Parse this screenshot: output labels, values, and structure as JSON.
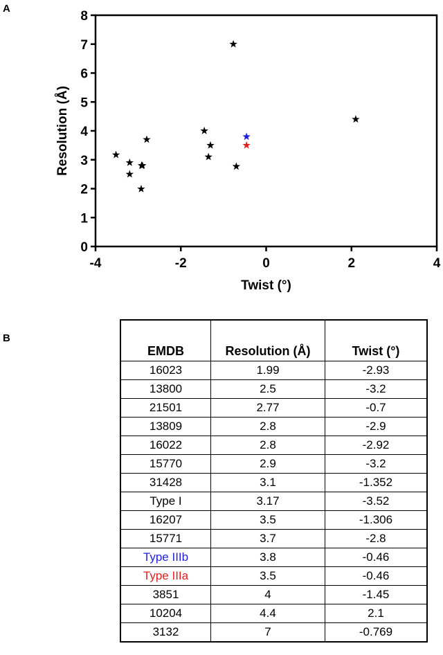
{
  "panel_a_label": "A",
  "panel_b_label": "B",
  "chart_data": {
    "type": "scatter",
    "xlabel": "Twist (°)",
    "ylabel": "Resolution (Å)",
    "xlim": [
      -4,
      4
    ],
    "ylim": [
      0,
      8
    ],
    "x_ticks": [
      -4,
      -2,
      0,
      2,
      4
    ],
    "y_ticks": [
      0,
      1,
      2,
      3,
      4,
      5,
      6,
      7,
      8
    ],
    "marker": "star",
    "grid": false,
    "points": [
      {
        "x": -2.93,
        "y": 1.99,
        "color": "#000000"
      },
      {
        "x": -3.2,
        "y": 2.5,
        "color": "#000000"
      },
      {
        "x": -0.7,
        "y": 2.77,
        "color": "#000000"
      },
      {
        "x": -2.9,
        "y": 2.8,
        "color": "#000000"
      },
      {
        "x": -2.92,
        "y": 2.8,
        "color": "#000000"
      },
      {
        "x": -3.2,
        "y": 2.9,
        "color": "#000000"
      },
      {
        "x": -1.352,
        "y": 3.1,
        "color": "#000000"
      },
      {
        "x": -3.52,
        "y": 3.17,
        "color": "#000000"
      },
      {
        "x": -1.306,
        "y": 3.5,
        "color": "#000000"
      },
      {
        "x": -2.8,
        "y": 3.7,
        "color": "#000000"
      },
      {
        "x": -0.46,
        "y": 3.8,
        "color": "#1f1fdd"
      },
      {
        "x": -0.46,
        "y": 3.5,
        "color": "#e02020"
      },
      {
        "x": -1.45,
        "y": 4,
        "color": "#000000"
      },
      {
        "x": 2.1,
        "y": 4.4,
        "color": "#000000"
      },
      {
        "x": -0.769,
        "y": 7,
        "color": "#000000"
      }
    ]
  },
  "table": {
    "headers": {
      "emdb": "EMDB",
      "resolution": "Resolution (Å)",
      "twist": "Twist (°)"
    },
    "rows": [
      {
        "emdb": "16023",
        "resolution": "1.99",
        "twist": "-2.93",
        "color": "#000000"
      },
      {
        "emdb": "13800",
        "resolution": "2.5",
        "twist": "-3.2",
        "color": "#000000"
      },
      {
        "emdb": "21501",
        "resolution": "2.77",
        "twist": "-0.7",
        "color": "#000000"
      },
      {
        "emdb": "13809",
        "resolution": "2.8",
        "twist": "-2.9",
        "color": "#000000"
      },
      {
        "emdb": "16022",
        "resolution": "2.8",
        "twist": "-2.92",
        "color": "#000000"
      },
      {
        "emdb": "15770",
        "resolution": "2.9",
        "twist": "-3.2",
        "color": "#000000"
      },
      {
        "emdb": "31428",
        "resolution": "3.1",
        "twist": "-1.352",
        "color": "#000000"
      },
      {
        "emdb": "Type I",
        "resolution": "3.17",
        "twist": "-3.52",
        "color": "#000000"
      },
      {
        "emdb": "16207",
        "resolution": "3.5",
        "twist": "-1.306",
        "color": "#000000"
      },
      {
        "emdb": "15771",
        "resolution": "3.7",
        "twist": "-2.8",
        "color": "#000000"
      },
      {
        "emdb": "Type IIIb",
        "resolution": "3.8",
        "twist": "-0.46",
        "color": "#1f1fdd"
      },
      {
        "emdb": "Type IIIa",
        "resolution": "3.5",
        "twist": "-0.46",
        "color": "#e02020"
      },
      {
        "emdb": "3851",
        "resolution": "4",
        "twist": "-1.45",
        "color": "#000000"
      },
      {
        "emdb": "10204",
        "resolution": "4.4",
        "twist": "2.1",
        "color": "#000000"
      },
      {
        "emdb": "3132",
        "resolution": "7",
        "twist": "-0.769",
        "color": "#000000"
      }
    ]
  }
}
